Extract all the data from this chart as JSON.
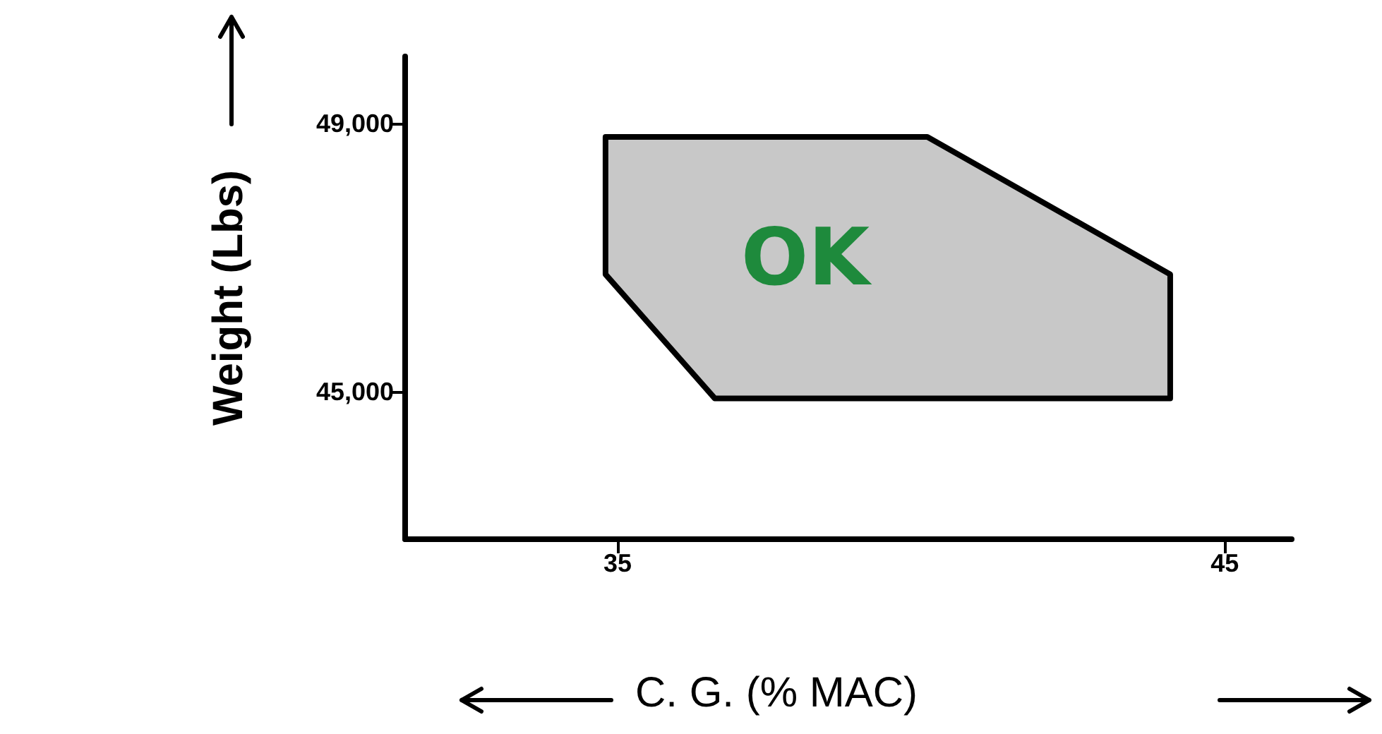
{
  "chart_data": {
    "type": "area",
    "xlabel": "C. G. (% MAC)",
    "ylabel": "Weight (Lbs)",
    "series": [
      {
        "color": "#c8c8c8",
        "x": [
          34.8,
          40.1,
          44.1,
          44.1,
          36.6,
          34.8
        ],
        "values": [
          48800,
          48800,
          46750,
          44900,
          44900,
          46750
        ]
      }
    ],
    "annotations": [
      "OK"
    ],
    "xlim": [
      31.5,
      46.1
    ],
    "xticks": [
      35,
      45
    ],
    "ylim": [
      42800,
      50000
    ],
    "yticks": [
      {
        "value": 45000,
        "label": "45,000"
      },
      {
        "value": 49000,
        "label": "49,000"
      }
    ],
    "grid": false,
    "marker": "none",
    "line_style": "solid"
  }
}
